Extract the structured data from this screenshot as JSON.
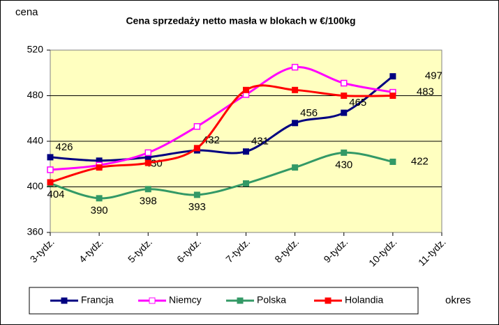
{
  "chart_data": {
    "type": "line",
    "title": "Cena sprzedaży netto masła  w blokach  w €/100kg",
    "y_label": "cena",
    "x_label": "okres",
    "categories": [
      "3-tydz.",
      "4-tydz.",
      "5-tydz.",
      "6-tydz.",
      "7-tydz.",
      "8-tydz.",
      "9-tydz.",
      "10-tydz.",
      "11-tydz."
    ],
    "series": [
      {
        "name": "Francja",
        "color": "#000080",
        "marker": "filled",
        "values": [
          426,
          423,
          426,
          432,
          431,
          456,
          465,
          497,
          null
        ],
        "value_labels": [
          426,
          null,
          null,
          432,
          431,
          456,
          465,
          497,
          null
        ]
      },
      {
        "name": "Niemcy",
        "color": "#FF00FF",
        "marker": "hollow",
        "values": [
          415,
          419,
          430,
          453,
          481,
          505,
          491,
          483,
          null
        ],
        "value_labels": [
          null,
          null,
          430,
          null,
          null,
          null,
          null,
          483,
          null
        ]
      },
      {
        "name": "Polska",
        "color": "#339966",
        "marker": "filled",
        "values": [
          403,
          390,
          398,
          393,
          403,
          417,
          430,
          422,
          null
        ],
        "value_labels": [
          null,
          390,
          398,
          393,
          null,
          null,
          430,
          422,
          null
        ]
      },
      {
        "name": "Holandia",
        "color": "#FF0000",
        "marker": "filled",
        "values": [
          404,
          417,
          421,
          434,
          485,
          485,
          480,
          480,
          null
        ],
        "value_labels": [
          404,
          null,
          null,
          null,
          null,
          null,
          null,
          null,
          null
        ]
      }
    ],
    "ylim": [
      360,
      520
    ],
    "yticks": [
      360,
      400,
      440,
      480,
      520
    ],
    "grid": true,
    "legend": "bottom"
  }
}
